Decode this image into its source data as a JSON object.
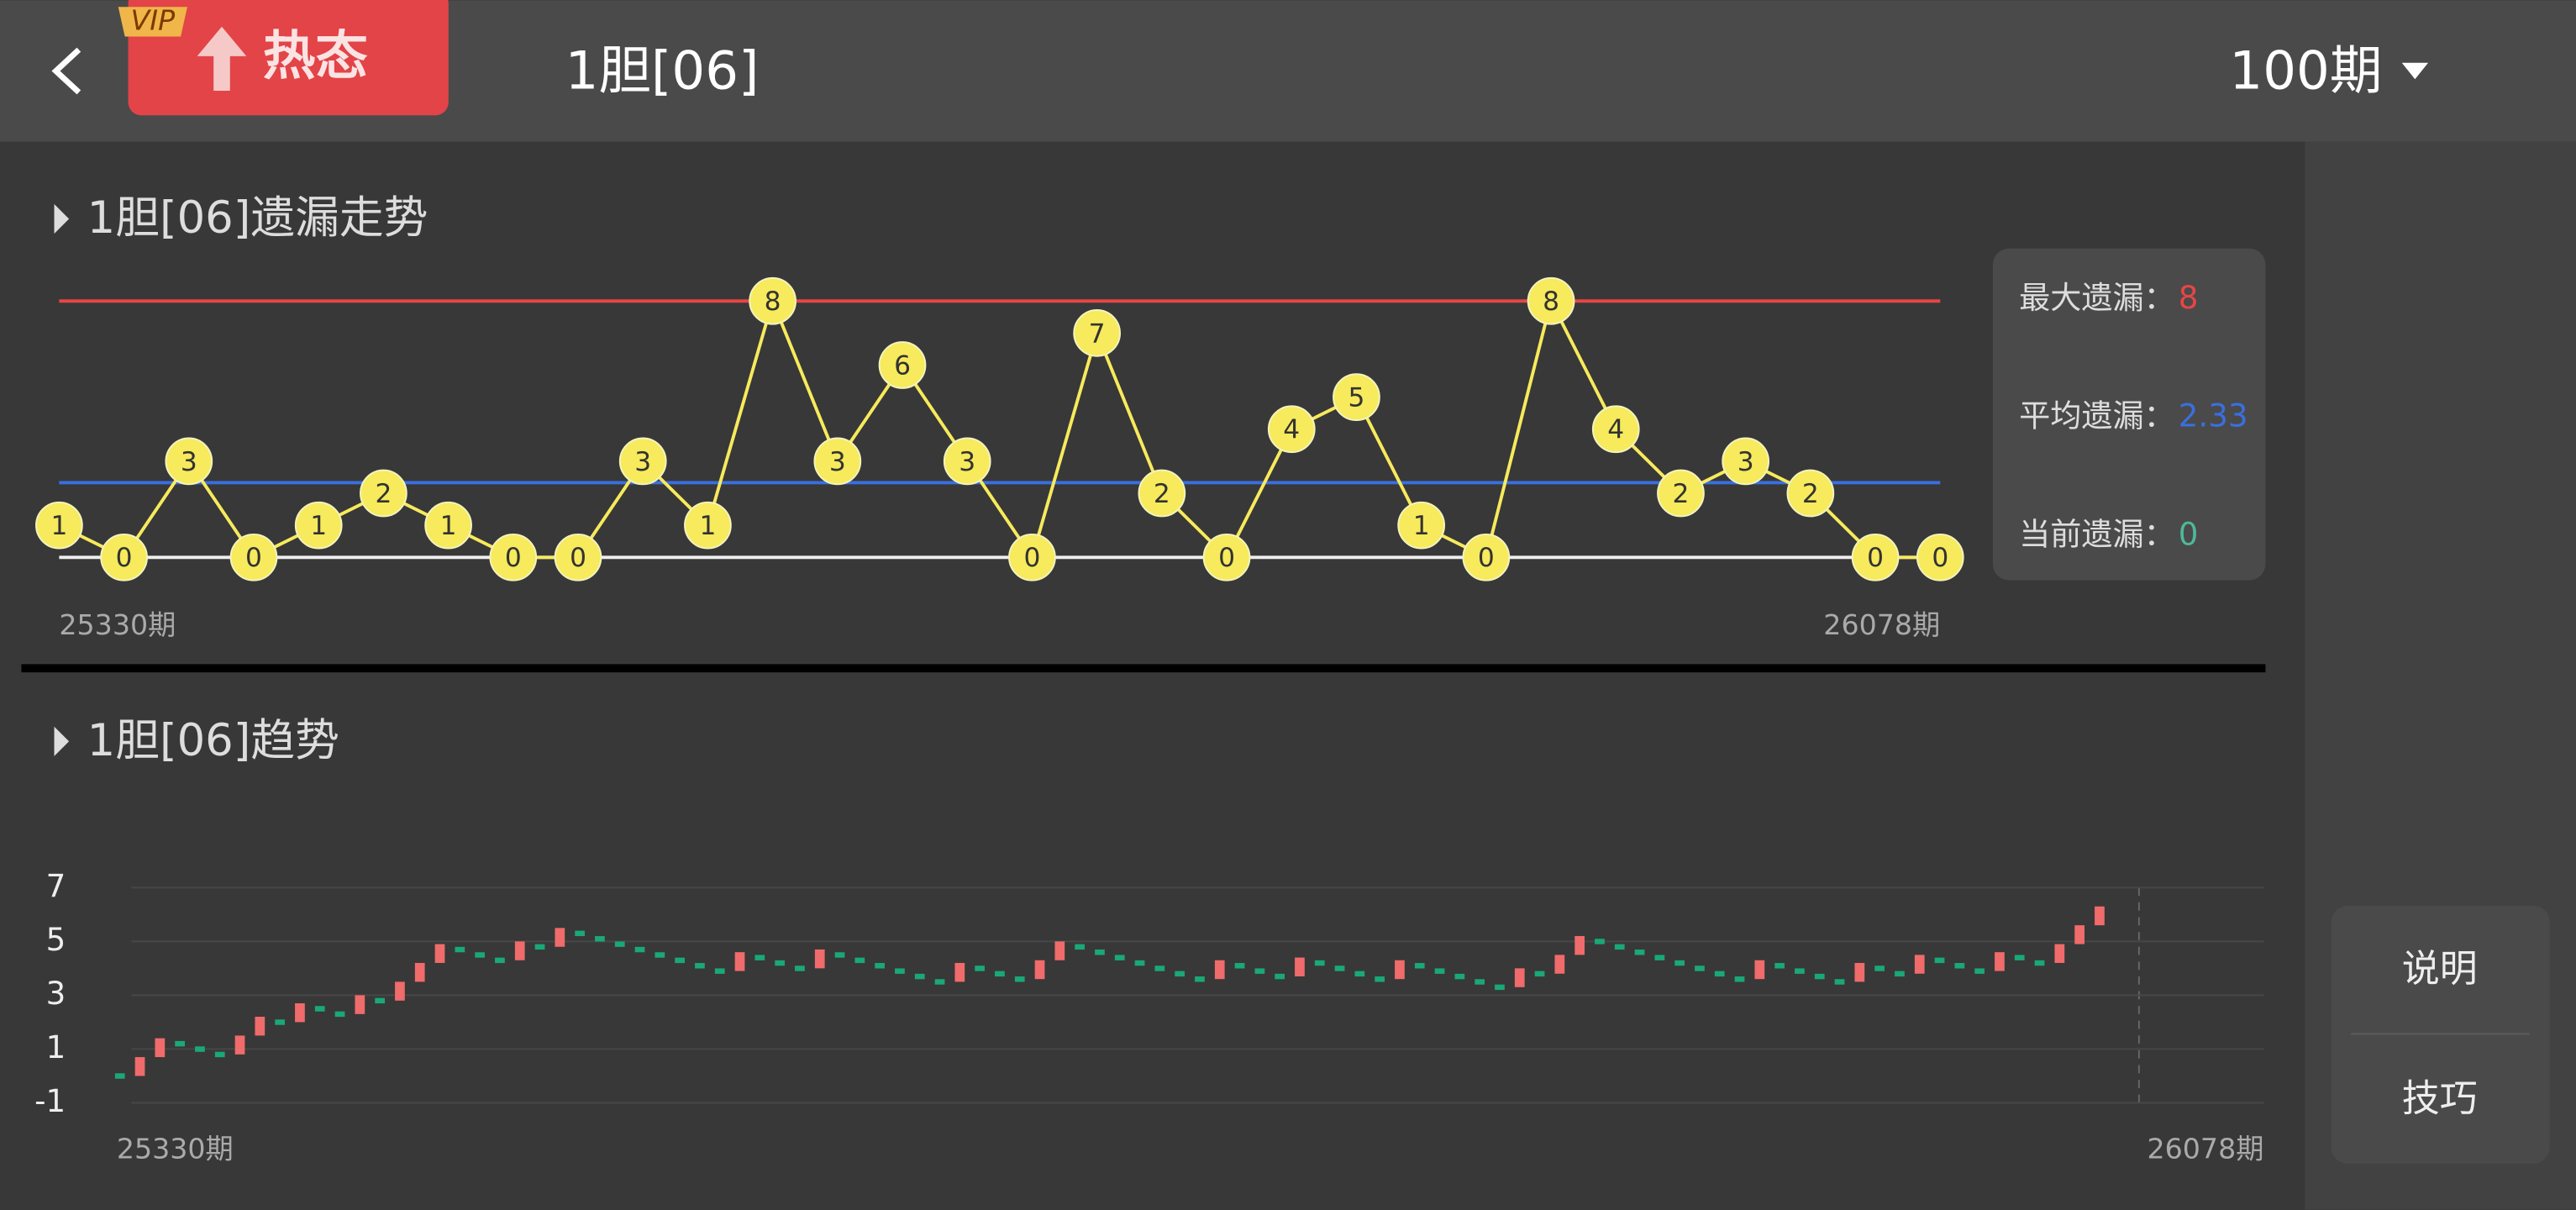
{
  "header": {
    "vip": "VIP",
    "badge": "热态",
    "title": "1胆[06]",
    "period": "100期"
  },
  "chart_data": [
    {
      "type": "line",
      "title": "1胆[06]遗漏走势",
      "x_labels": [
        "25330期",
        "26078期"
      ],
      "values": [
        1,
        0,
        3,
        0,
        1,
        2,
        1,
        0,
        0,
        3,
        1,
        8,
        3,
        6,
        3,
        0,
        7,
        2,
        0,
        4,
        5,
        1,
        0,
        8,
        4,
        2,
        3,
        2,
        0,
        0
      ],
      "color": "#f7ea5c",
      "ylim": [
        0,
        8
      ],
      "stats": [
        {
          "label": "最大遗漏：",
          "value": 8,
          "color": "#e84545"
        },
        {
          "label": "平均遗漏：",
          "value": 2.33,
          "color": "#3a6fe0"
        },
        {
          "label": "当前遗漏：",
          "value": 0,
          "color": "#4fb898"
        }
      ]
    },
    {
      "type": "candlestick",
      "title": "1胆[06]趋势",
      "x_labels": [
        "25330期",
        "26078期"
      ],
      "values": [
        0,
        0.7,
        1.4,
        1.2,
        1.0,
        0.8,
        1.5,
        2.2,
        2.0,
        2.7,
        2.5,
        2.3,
        3.0,
        2.8,
        3.5,
        4.2,
        4.9,
        4.7,
        4.5,
        4.3,
        5.0,
        4.8,
        5.5,
        5.3,
        5.1,
        4.9,
        4.7,
        4.5,
        4.3,
        4.1,
        3.9,
        4.6,
        4.4,
        4.2,
        4.0,
        4.7,
        4.5,
        4.3,
        4.1,
        3.9,
        3.7,
        3.5,
        4.2,
        4.0,
        3.8,
        3.6,
        4.3,
        5.0,
        4.8,
        4.6,
        4.4,
        4.2,
        4.0,
        3.8,
        3.6,
        4.3,
        4.1,
        3.9,
        3.7,
        4.4,
        4.2,
        4.0,
        3.8,
        3.6,
        4.3,
        4.1,
        3.9,
        3.7,
        3.5,
        3.3,
        4.0,
        3.8,
        4.5,
        5.2,
        5.0,
        4.8,
        4.6,
        4.4,
        4.2,
        4.0,
        3.8,
        3.6,
        4.3,
        4.1,
        3.9,
        3.7,
        3.5,
        4.2,
        4.0,
        3.8,
        4.5,
        4.3,
        4.1,
        3.9,
        4.6,
        4.4,
        4.2,
        4.9,
        5.6,
        6.3
      ],
      "up_color": "#f06b6b",
      "down_color": "#1aa876",
      "ylim": [
        -1,
        7
      ],
      "yticks": [
        7,
        5,
        3,
        1,
        -1
      ],
      "grid": true
    }
  ],
  "buttons": [
    "说明",
    "技巧"
  ]
}
